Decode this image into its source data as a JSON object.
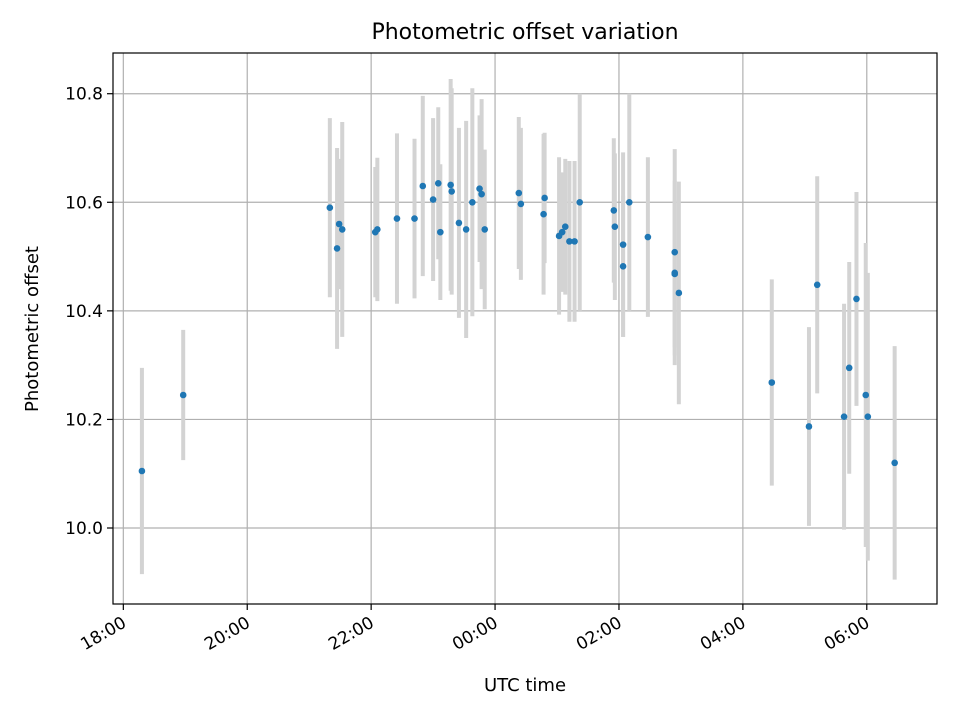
{
  "chart_data": {
    "type": "scatter",
    "title": "Photometric offset variation",
    "xlabel": "UTC time",
    "ylabel": "Photometric offset",
    "x_ticks": [
      "18:00",
      "20:00",
      "22:00",
      "00:00",
      "02:00",
      "04:00",
      "06:00"
    ],
    "y_ticks": [
      "10.0",
      "10.2",
      "10.4",
      "10.6",
      "10.8"
    ],
    "xlim": [
      "17:50",
      "07:08"
    ],
    "ylim": [
      9.86,
      10.875
    ],
    "grid": true,
    "series": [
      {
        "marker_color": "#1f77b4",
        "errorbar_color": "#d3d3d3",
        "x": [
          "18:18",
          "18:58",
          "21:20",
          "21:27",
          "21:29",
          "21:32",
          "22:04",
          "22:06",
          "22:25",
          "22:42",
          "22:50",
          "23:00",
          "23:05",
          "23:07",
          "23:17",
          "23:18",
          "23:25",
          "23:32",
          "23:38",
          "23:45",
          "23:47",
          "23:50",
          "00:23",
          "00:25",
          "00:47",
          "00:48",
          "01:02",
          "01:05",
          "01:08",
          "01:12",
          "01:17",
          "01:22",
          "01:55",
          "01:56",
          "02:04",
          "02:04",
          "02:10",
          "02:28",
          "02:54",
          "02:54",
          "02:54",
          "02:58",
          "04:28",
          "05:04",
          "05:12",
          "05:38",
          "05:43",
          "05:50",
          "05:59",
          "06:01",
          "06:27"
        ],
        "y": [
          10.105,
          10.245,
          10.59,
          10.515,
          10.56,
          10.55,
          10.545,
          10.55,
          10.57,
          10.57,
          10.63,
          10.605,
          10.635,
          10.545,
          10.632,
          10.62,
          10.562,
          10.55,
          10.6,
          10.625,
          10.615,
          10.55,
          10.617,
          10.597,
          10.578,
          10.608,
          10.538,
          10.545,
          10.555,
          10.528,
          10.528,
          10.6,
          10.585,
          10.555,
          10.522,
          10.482,
          10.6,
          10.536,
          10.508,
          10.468,
          10.47,
          10.433,
          10.268,
          10.187,
          10.448,
          10.205,
          10.295,
          10.422,
          10.245,
          10.205,
          10.12
        ],
        "err": [
          0.19,
          0.12,
          0.165,
          0.185,
          0.12,
          0.198,
          0.12,
          0.132,
          0.157,
          0.147,
          0.166,
          0.15,
          0.14,
          0.125,
          0.195,
          0.19,
          0.175,
          0.2,
          0.21,
          0.135,
          0.175,
          0.147,
          0.14,
          0.14,
          0.148,
          0.12,
          0.145,
          0.11,
          0.125,
          0.148,
          0.148,
          0.2,
          0.133,
          0.135,
          0.17,
          0.13,
          0.2,
          0.147,
          0.19,
          0.135,
          0.17,
          0.205,
          0.19,
          0.183,
          0.2,
          0.208,
          0.195,
          0.197,
          0.28,
          0.265,
          0.215
        ]
      }
    ]
  }
}
